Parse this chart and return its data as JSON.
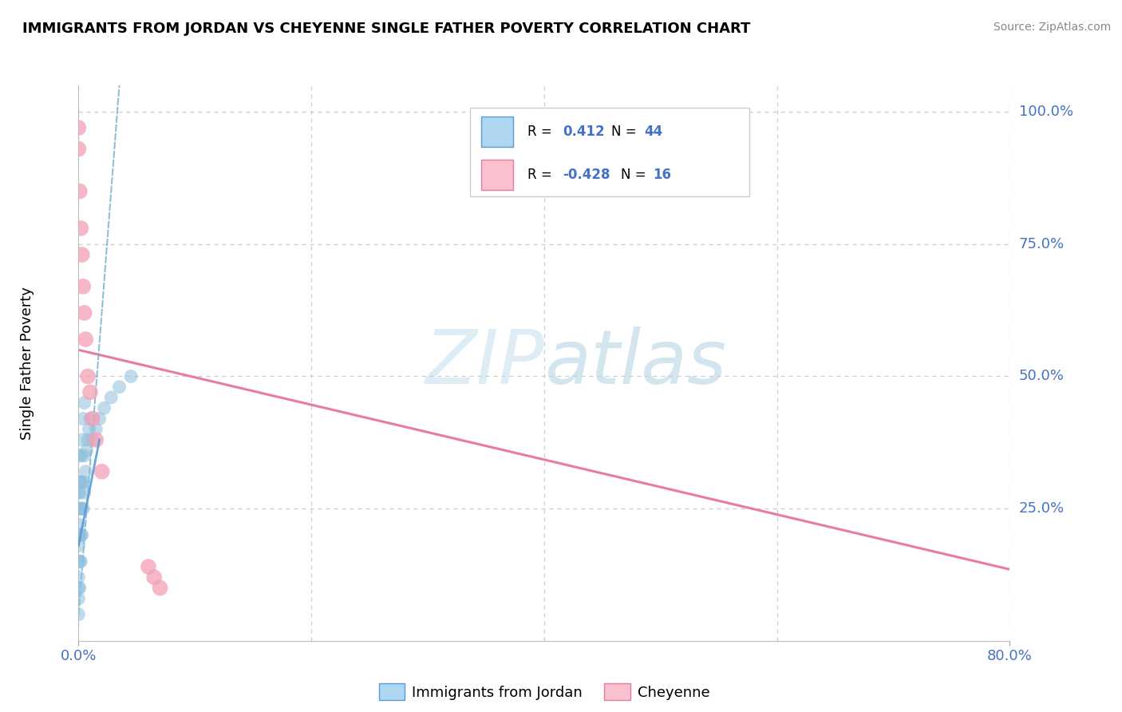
{
  "title": "IMMIGRANTS FROM JORDAN VS CHEYENNE SINGLE FATHER POVERTY CORRELATION CHART",
  "source": "Source: ZipAtlas.com",
  "ylabel": "Single Father Poverty",
  "xlim": [
    0.0,
    0.8
  ],
  "ylim": [
    0.0,
    1.05
  ],
  "color_blue": "#8fbfdc",
  "color_pink": "#f4a0b5",
  "color_blue_line": "#5b9bd5",
  "color_blue_line_dash": "#7ab3d4",
  "color_pink_line": "#e87ca0",
  "color_grid": "#cccccc",
  "watermark_color": "#d6eaf8",
  "jordan_x": [
    0.0,
    0.0,
    0.0,
    0.0,
    0.0,
    0.0,
    0.0,
    0.0,
    0.0,
    0.0,
    0.001,
    0.001,
    0.001,
    0.001,
    0.001,
    0.001,
    0.001,
    0.002,
    0.002,
    0.002,
    0.002,
    0.002,
    0.003,
    0.003,
    0.003,
    0.003,
    0.004,
    0.004,
    0.004,
    0.005,
    0.005,
    0.005,
    0.006,
    0.007,
    0.008,
    0.009,
    0.01,
    0.012,
    0.015,
    0.018,
    0.022,
    0.028,
    0.035,
    0.045
  ],
  "jordan_y": [
    0.05,
    0.08,
    0.1,
    0.12,
    0.15,
    0.18,
    0.2,
    0.22,
    0.25,
    0.28,
    0.1,
    0.15,
    0.2,
    0.25,
    0.28,
    0.3,
    0.35,
    0.15,
    0.2,
    0.25,
    0.3,
    0.35,
    0.2,
    0.25,
    0.3,
    0.38,
    0.25,
    0.3,
    0.42,
    0.28,
    0.35,
    0.45,
    0.32,
    0.36,
    0.38,
    0.4,
    0.42,
    0.38,
    0.4,
    0.42,
    0.44,
    0.46,
    0.48,
    0.5
  ],
  "cheyenne_x": [
    0.0,
    0.0,
    0.001,
    0.002,
    0.003,
    0.004,
    0.005,
    0.006,
    0.008,
    0.01,
    0.012,
    0.015,
    0.02,
    0.06,
    0.065,
    0.07
  ],
  "cheyenne_y": [
    0.97,
    0.93,
    0.85,
    0.78,
    0.73,
    0.67,
    0.62,
    0.57,
    0.5,
    0.47,
    0.42,
    0.38,
    0.32,
    0.14,
    0.12,
    0.1
  ],
  "blue_line_x0": 0.0,
  "blue_line_x1": 0.08,
  "pink_line_x0": 0.0,
  "pink_line_x1": 0.8,
  "pink_line_y0": 0.55,
  "pink_line_y1": 0.135,
  "ytick_positions": [
    0.25,
    0.5,
    0.75,
    1.0
  ],
  "ytick_labels": [
    "25.0%",
    "50.0%",
    "75.0%",
    "100.0%"
  ]
}
